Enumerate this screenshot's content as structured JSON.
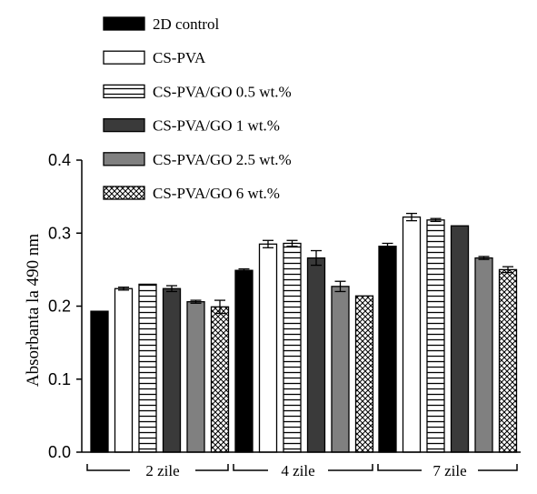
{
  "chart_data": {
    "type": "bar",
    "title": "",
    "xlabel": "",
    "ylabel": "Absorbanta la 490 nm",
    "ylim": [
      0,
      0.4
    ],
    "yticks": [
      "0.0",
      "0.1",
      "0.2",
      "0.3",
      "0.4"
    ],
    "ytick_values": [
      0,
      0.1,
      0.2,
      0.3,
      0.4
    ],
    "grid": false,
    "legend_position": "top-left",
    "categories": [
      "2 zile",
      "4 zile",
      "7 zile"
    ],
    "series": [
      {
        "name": "2D control",
        "pattern": "solid-black",
        "values": [
          0.193,
          0.249,
          0.282
        ],
        "errors": [
          0,
          0.002,
          0.004
        ]
      },
      {
        "name": "CS-PVA",
        "pattern": "white",
        "values": [
          0.224,
          0.285,
          0.322
        ],
        "errors": [
          0.002,
          0.005,
          0.005
        ]
      },
      {
        "name": "CS-PVA/GO 0.5 wt.%",
        "pattern": "horizontal-stripes",
        "values": [
          0.23,
          0.286,
          0.318
        ],
        "errors": [
          0,
          0.004,
          0.002
        ]
      },
      {
        "name": "CS-PVA/GO 1 wt.%",
        "pattern": "dark-gray",
        "values": [
          0.224,
          0.266,
          0.31
        ],
        "errors": [
          0.004,
          0.01,
          0
        ]
      },
      {
        "name": "CS-PVA/GO 2.5 wt.%",
        "pattern": "medium-gray",
        "values": [
          0.206,
          0.227,
          0.266
        ],
        "errors": [
          0.002,
          0.007,
          0.002
        ]
      },
      {
        "name": "CS-PVA/GO 6 wt.%",
        "pattern": "crosshatch",
        "values": [
          0.199,
          0.214,
          0.25
        ],
        "errors": [
          0.009,
          0,
          0.004
        ]
      }
    ],
    "colors": {
      "solid-black": "#000000",
      "white": "#ffffff",
      "dark-gray": "#3a3a3a",
      "medium-gray": "#808080",
      "axis": "#000000"
    }
  }
}
